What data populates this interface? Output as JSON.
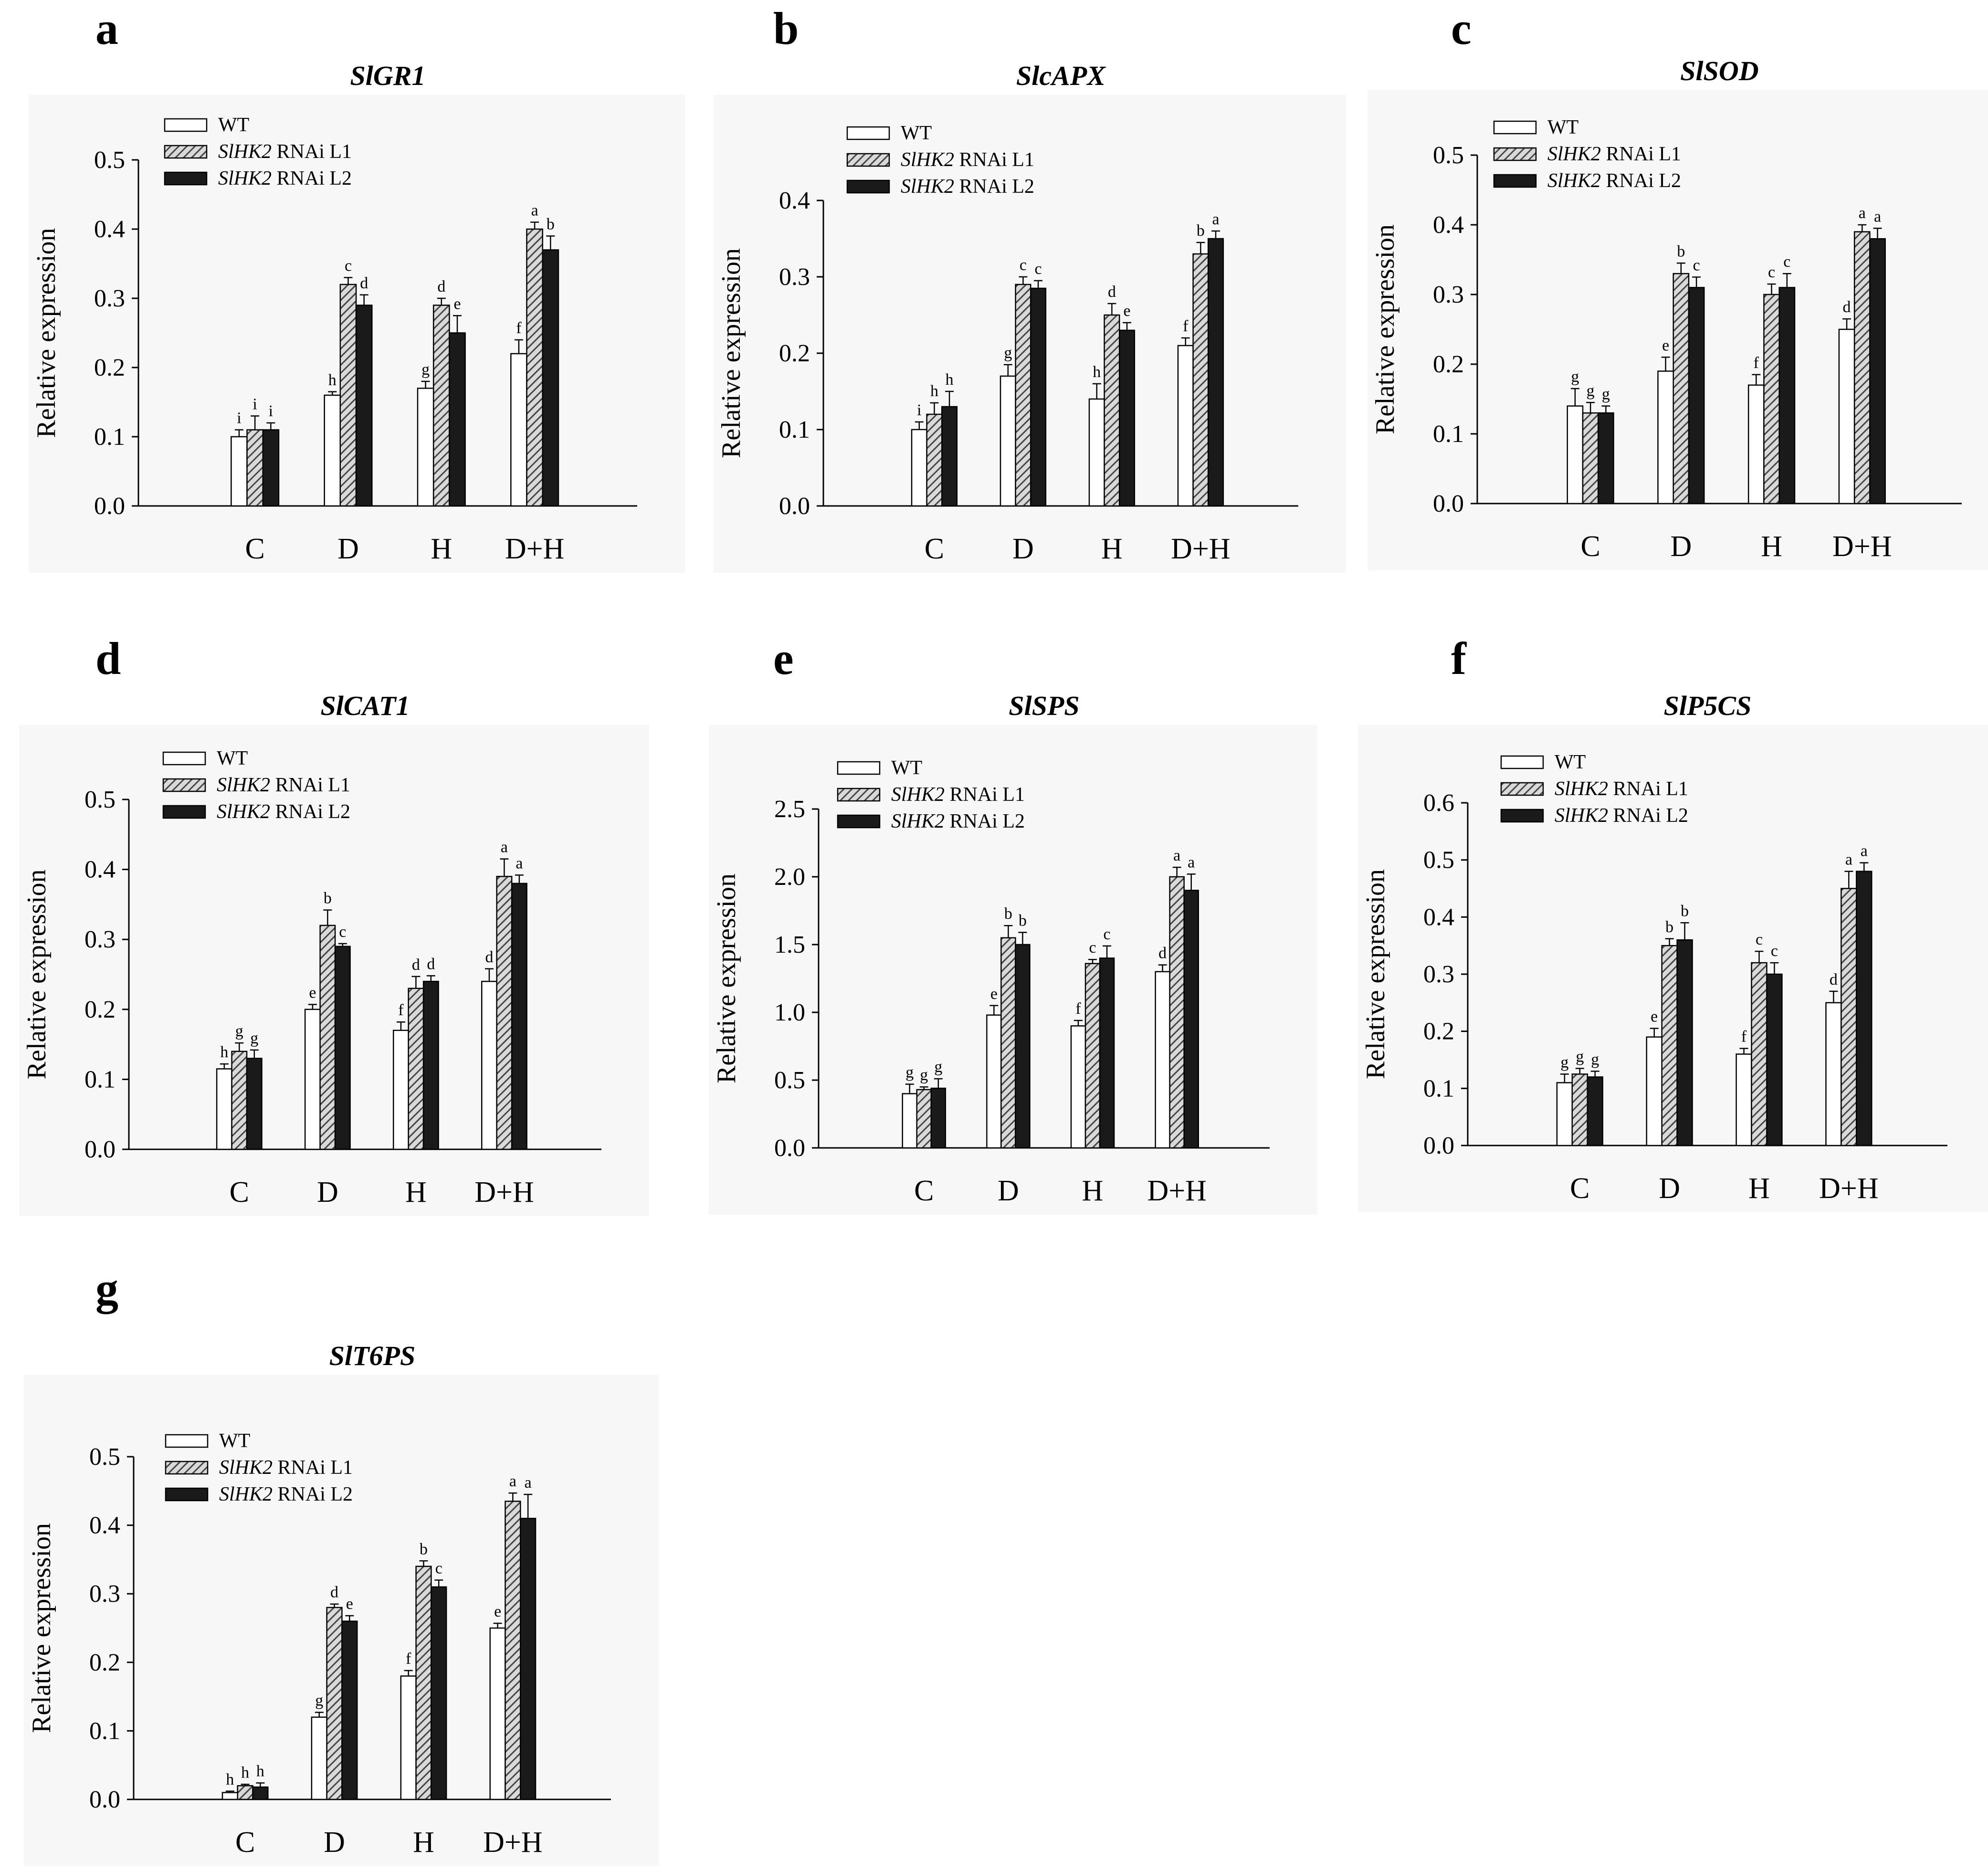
{
  "colors": {
    "wt": "#ffffff",
    "l1": "#8a8a8a",
    "l2": "#1a1a1a",
    "axis": "#000000",
    "panel_bg": "#f7f7f7"
  },
  "legend": {
    "wt": "WT",
    "l1_gene": "SlHK2",
    "l1_rest": " RNAi L1",
    "l2_gene": "SlHK2",
    "l2_rest": " RNAi L2"
  },
  "chart_data": [
    {
      "panel": "a",
      "type": "bar",
      "title": "SlGR1",
      "ylabel": "Relative expression",
      "xlabel": "",
      "categories": [
        "C",
        "D",
        "H",
        "D+H"
      ],
      "ylim": [
        0,
        0.5
      ],
      "yticks": [
        "0.0",
        "0.1",
        "0.2",
        "0.3",
        "0.4",
        "0.5"
      ],
      "series": [
        {
          "name": "WT",
          "values": [
            0.1,
            0.16,
            0.17,
            0.22
          ],
          "errors": [
            0.01,
            0.005,
            0.01,
            0.02
          ],
          "letters": [
            "i",
            "h",
            "g",
            "f"
          ]
        },
        {
          "name": "SlHK2 RNAi L1",
          "values": [
            0.11,
            0.32,
            0.29,
            0.4
          ],
          "errors": [
            0.02,
            0.01,
            0.01,
            0.01
          ],
          "letters": [
            "i",
            "c",
            "d",
            "a"
          ]
        },
        {
          "name": "SlHK2 RNAi L2",
          "values": [
            0.11,
            0.29,
            0.25,
            0.37
          ],
          "errors": [
            0.01,
            0.015,
            0.025,
            0.02
          ],
          "letters": [
            "i",
            "d",
            "e",
            "b"
          ]
        }
      ]
    },
    {
      "panel": "b",
      "type": "bar",
      "title": "SlcAPX",
      "ylabel": "Relative expression",
      "xlabel": "",
      "categories": [
        "C",
        "D",
        "H",
        "D+H"
      ],
      "ylim": [
        0,
        0.4
      ],
      "yticks": [
        "0.0",
        "0.1",
        "0.2",
        "0.3",
        "0.4"
      ],
      "series": [
        {
          "name": "WT",
          "values": [
            0.1,
            0.17,
            0.14,
            0.21
          ],
          "errors": [
            0.01,
            0.015,
            0.02,
            0.01
          ],
          "letters": [
            "i",
            "g",
            "h",
            "f"
          ]
        },
        {
          "name": "SlHK2 RNAi L1",
          "values": [
            0.12,
            0.29,
            0.25,
            0.33
          ],
          "errors": [
            0.015,
            0.01,
            0.015,
            0.015
          ],
          "letters": [
            "h",
            "c",
            "d",
            "b"
          ]
        },
        {
          "name": "SlHK2 RNAi L2",
          "values": [
            0.13,
            0.285,
            0.23,
            0.35
          ],
          "errors": [
            0.02,
            0.01,
            0.01,
            0.01
          ],
          "letters": [
            "h",
            "c",
            "e",
            "a"
          ]
        }
      ]
    },
    {
      "panel": "c",
      "type": "bar",
      "title": "SlSOD",
      "ylabel": "Relative expression",
      "xlabel": "",
      "categories": [
        "C",
        "D",
        "H",
        "D+H"
      ],
      "ylim": [
        0,
        0.5
      ],
      "yticks": [
        "0.0",
        "0.1",
        "0.2",
        "0.3",
        "0.4",
        "0.5"
      ],
      "series": [
        {
          "name": "WT",
          "values": [
            0.14,
            0.19,
            0.17,
            0.25
          ],
          "errors": [
            0.025,
            0.02,
            0.015,
            0.015
          ],
          "letters": [
            "g",
            "e",
            "f",
            "d"
          ]
        },
        {
          "name": "SlHK2 RNAi L1",
          "values": [
            0.13,
            0.33,
            0.3,
            0.39
          ],
          "errors": [
            0.015,
            0.015,
            0.015,
            0.01
          ],
          "letters": [
            "g",
            "b",
            "c",
            "a"
          ]
        },
        {
          "name": "SlHK2 RNAi L2",
          "values": [
            0.13,
            0.31,
            0.31,
            0.38
          ],
          "errors": [
            0.01,
            0.015,
            0.02,
            0.015
          ],
          "letters": [
            "g",
            "c",
            "c",
            "a"
          ]
        }
      ]
    },
    {
      "panel": "d",
      "type": "bar",
      "title": "SlCAT1",
      "ylabel": "Relative expression",
      "xlabel": "",
      "categories": [
        "C",
        "D",
        "H",
        "D+H"
      ],
      "ylim": [
        0,
        0.5
      ],
      "yticks": [
        "0.0",
        "0.1",
        "0.2",
        "0.3",
        "0.4",
        "0.5"
      ],
      "series": [
        {
          "name": "WT",
          "values": [
            0.115,
            0.2,
            0.17,
            0.24
          ],
          "errors": [
            0.007,
            0.007,
            0.012,
            0.018
          ],
          "letters": [
            "h",
            "e",
            "f",
            "d"
          ]
        },
        {
          "name": "SlHK2 RNAi L1",
          "values": [
            0.14,
            0.32,
            0.23,
            0.39
          ],
          "errors": [
            0.012,
            0.022,
            0.017,
            0.025
          ],
          "letters": [
            "g",
            "b",
            "d",
            "a"
          ]
        },
        {
          "name": "SlHK2 RNAi L2",
          "values": [
            0.13,
            0.29,
            0.24,
            0.38
          ],
          "errors": [
            0.012,
            0.004,
            0.008,
            0.012
          ],
          "letters": [
            "g",
            "c",
            "d",
            "a"
          ]
        }
      ]
    },
    {
      "panel": "e",
      "type": "bar",
      "title": "SlSPS",
      "ylabel": "Relative expression",
      "xlabel": "",
      "categories": [
        "C",
        "D",
        "H",
        "D+H"
      ],
      "ylim": [
        0,
        2.5
      ],
      "yticks": [
        "0.0",
        "0.5",
        "1.0",
        "1.5",
        "2.0",
        "2.5"
      ],
      "series": [
        {
          "name": "WT",
          "values": [
            0.4,
            0.98,
            0.9,
            1.3
          ],
          "errors": [
            0.07,
            0.07,
            0.04,
            0.05
          ],
          "letters": [
            "g",
            "e",
            "f",
            "d"
          ]
        },
        {
          "name": "SlHK2 RNAi L1",
          "values": [
            0.43,
            1.55,
            1.36,
            2.0
          ],
          "errors": [
            0.02,
            0.09,
            0.03,
            0.07
          ],
          "letters": [
            "g",
            "b",
            "c",
            "a"
          ]
        },
        {
          "name": "SlHK2 RNAi L2",
          "values": [
            0.44,
            1.5,
            1.4,
            1.9
          ],
          "errors": [
            0.07,
            0.09,
            0.09,
            0.12
          ],
          "letters": [
            "g",
            "b",
            "c",
            "a"
          ]
        }
      ]
    },
    {
      "panel": "f",
      "type": "bar",
      "title": "SlP5CS",
      "ylabel": "Relative expression",
      "xlabel": "",
      "categories": [
        "C",
        "D",
        "H",
        "D+H"
      ],
      "ylim": [
        0,
        0.6
      ],
      "yticks": [
        "0.0",
        "0.1",
        "0.2",
        "0.3",
        "0.4",
        "0.5",
        "0.6"
      ],
      "series": [
        {
          "name": "WT",
          "values": [
            0.11,
            0.19,
            0.16,
            0.25
          ],
          "errors": [
            0.015,
            0.015,
            0.01,
            0.02
          ],
          "letters": [
            "g",
            "e",
            "f",
            "d"
          ]
        },
        {
          "name": "SlHK2 RNAi L1",
          "values": [
            0.125,
            0.35,
            0.32,
            0.45
          ],
          "errors": [
            0.01,
            0.012,
            0.02,
            0.03
          ],
          "letters": [
            "g",
            "b",
            "c",
            "a"
          ]
        },
        {
          "name": "SlHK2 RNAi L2",
          "values": [
            0.12,
            0.36,
            0.3,
            0.48
          ],
          "errors": [
            0.01,
            0.03,
            0.02,
            0.015
          ],
          "letters": [
            "g",
            "b",
            "c",
            "a"
          ]
        }
      ]
    },
    {
      "panel": "g",
      "type": "bar",
      "title": "SlT6PS",
      "ylabel": "Relative expression",
      "xlabel": "",
      "categories": [
        "C",
        "D",
        "H",
        "D+H"
      ],
      "ylim": [
        0,
        0.5
      ],
      "yticks": [
        "0.0",
        "0.1",
        "0.2",
        "0.3",
        "0.4",
        "0.5"
      ],
      "series": [
        {
          "name": "WT",
          "values": [
            0.01,
            0.12,
            0.18,
            0.25
          ],
          "errors": [
            0.002,
            0.007,
            0.008,
            0.007
          ],
          "letters": [
            "h",
            "g",
            "f",
            "e"
          ]
        },
        {
          "name": "SlHK2 RNAi L1",
          "values": [
            0.02,
            0.28,
            0.34,
            0.435
          ],
          "errors": [
            0.002,
            0.005,
            0.008,
            0.012
          ],
          "letters": [
            "h",
            "d",
            "b",
            "a"
          ]
        },
        {
          "name": "SlHK2 RNAi L2",
          "values": [
            0.018,
            0.26,
            0.31,
            0.41
          ],
          "errors": [
            0.006,
            0.008,
            0.01,
            0.035
          ],
          "letters": [
            "h",
            "e",
            "c",
            "a"
          ]
        }
      ]
    }
  ]
}
